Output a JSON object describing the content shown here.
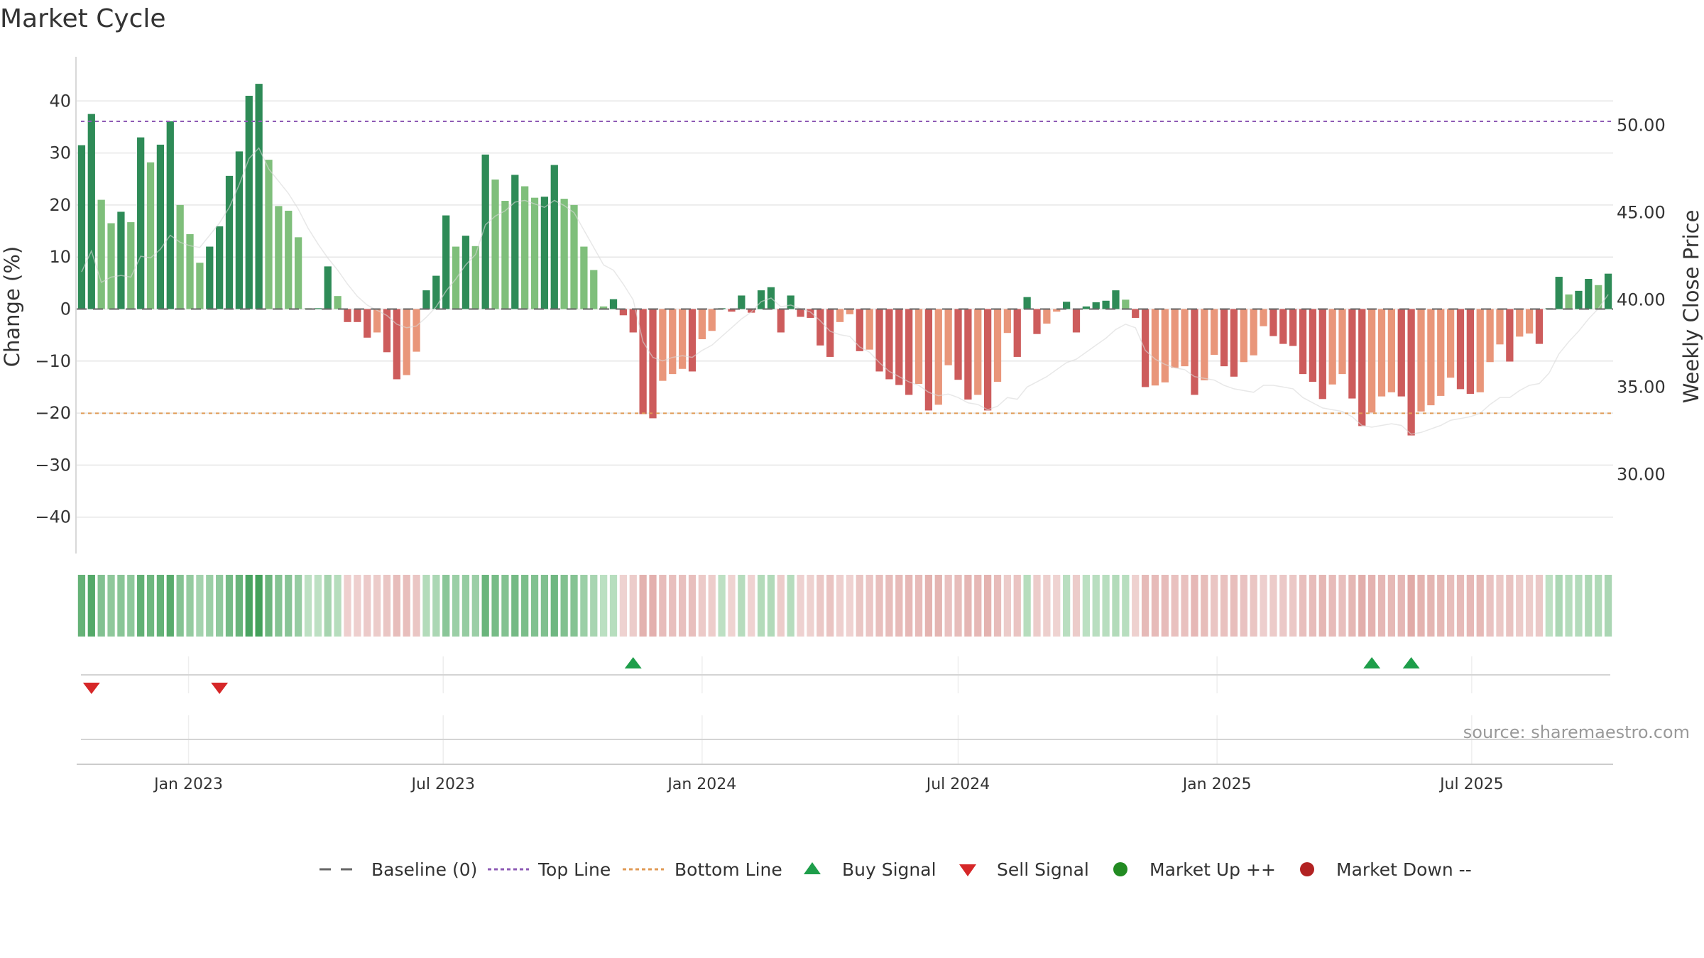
{
  "chart_data": {
    "type": "bar",
    "title": "Market Cycle",
    "ylabel_left": "Change (%)",
    "ylabel_right": "Weekly Close Price",
    "ylim_left": [
      -47,
      48.5
    ],
    "ylim_right": [
      25.46,
      53.93
    ],
    "yticks_left": [
      "40",
      "30",
      "20",
      "10",
      "0",
      "−10",
      "−20",
      "−30",
      "−40"
    ],
    "yticks_left_values": [
      40,
      30,
      20,
      10,
      0,
      -10,
      -20,
      -30,
      -40
    ],
    "yticks_right": [
      "50.00",
      "45.00",
      "40.00",
      "35.00",
      "30.00"
    ],
    "yticks_right_values": [
      50,
      45,
      40,
      35,
      30
    ],
    "x_start": "2022-10-17",
    "x_step_days": 7,
    "xticks": [
      {
        "date": "2023-01-01",
        "label": "Jan 2023"
      },
      {
        "date": "2023-07-01",
        "label": "Jul 2023"
      },
      {
        "date": "2024-01-01",
        "label": "Jan 2024"
      },
      {
        "date": "2024-07-01",
        "label": "Jul 2024"
      },
      {
        "date": "2025-01-01",
        "label": "Jan 2025"
      },
      {
        "date": "2025-07-01",
        "label": "Jul 2025"
      }
    ],
    "values": [
      31.5,
      37.5,
      21,
      16.5,
      18.7,
      16.7,
      33,
      28.2,
      31.6,
      36.1,
      20,
      14.4,
      8.9,
      12,
      15.9,
      25.6,
      30.3,
      41,
      43.3,
      28.7,
      19.8,
      18.9,
      13.8,
      0,
      0,
      8.2,
      2.5,
      -2.5,
      -2.5,
      -5.5,
      -4.5,
      -8.3,
      -13.5,
      -12.7,
      -8.2,
      3.6,
      6.4,
      18,
      12,
      14.1,
      12.1,
      29.7,
      24.9,
      20.8,
      25.8,
      23.6,
      21.4,
      21.6,
      27.7,
      21.2,
      20,
      12,
      7.5,
      0.5,
      1.9,
      -1.2,
      -4.5,
      -20.2,
      -21,
      -13.8,
      -12.5,
      -11.5,
      -12,
      -5.8,
      -4.2,
      0,
      -0.5,
      2.6,
      -0.7,
      3.6,
      4.2,
      -4.5,
      2.6,
      -1.5,
      -1.7,
      -7,
      -9.2,
      -2.5,
      -1,
      -8.1,
      -7.8,
      -12,
      -13.5,
      -14.6,
      -16.5,
      -14.4,
      -19.5,
      -18.4,
      -10.8,
      -13.6,
      -17.4,
      -16.5,
      -19.5,
      -14,
      -4.6,
      -9.2,
      2.3,
      -4.8,
      -2.8,
      -0.5,
      1.4,
      -4.5,
      0.5,
      1.3,
      1.6,
      3.6,
      1.8,
      -1.7,
      -15,
      -14.7,
      -14.1,
      -11.3,
      -11,
      -16.5,
      -13.7,
      -8.8,
      -11,
      -13,
      -10.2,
      -8.9,
      -3.3,
      -5.2,
      -6.7,
      -7.1,
      -12.5,
      -14,
      -17.3,
      -14.5,
      -12.5,
      -17.2,
      -22.5,
      -19.9,
      -16.8,
      -16,
      -16.8,
      -24.3,
      -19.7,
      -18.5,
      -16.7,
      -13.2,
      -15.4,
      -16.3,
      -16,
      -10.2,
      -6.8,
      -10.1,
      -5.3,
      -4.7,
      -6.7,
      0,
      6.2,
      2.8,
      3.5,
      5.8,
      4.6,
      6.8
    ],
    "close": [
      41.6,
      42.8,
      41,
      41.3,
      41.4,
      41.3,
      42.5,
      42.4,
      42.9,
      43.7,
      43.3,
      43.1,
      43,
      43.7,
      44.4,
      45.3,
      46.6,
      48.1,
      48.7,
      47.5,
      46.8,
      46.1,
      45.2,
      44.1,
      43.2,
      42.4,
      41.7,
      40.9,
      40.2,
      39.7,
      39.4,
      39.1,
      38.6,
      38.4,
      38.5,
      39,
      39.6,
      40.5,
      41.2,
      42,
      42.6,
      44.3,
      44.8,
      45.1,
      45.6,
      45.7,
      45.5,
      45.3,
      45.7,
      45.4,
      45,
      44,
      43,
      42,
      41.7,
      40.9,
      40,
      37.6,
      36.7,
      36.5,
      36.7,
      36.8,
      36.7,
      37.1,
      37.4,
      37.9,
      38.4,
      38.9,
      39.3,
      39.9,
      40.1,
      39.6,
      39.7,
      39.5,
      39.3,
      38.8,
      38.2,
      38,
      37.9,
      37.3,
      37,
      36.4,
      35.9,
      35.6,
      35.3,
      35.1,
      34.7,
      34.5,
      34.6,
      34.4,
      34.1,
      34,
      33.7,
      33.9,
      34.4,
      34.3,
      35,
      35.3,
      35.6,
      36,
      36.4,
      36.6,
      37,
      37.4,
      37.8,
      38.3,
      38.6,
      38.4,
      37.1,
      36.6,
      36.3,
      36.1,
      36,
      35.6,
      35.5,
      35.4,
      35.1,
      34.9,
      34.8,
      34.7,
      35.1,
      35.1,
      35,
      34.9,
      34.4,
      34.1,
      33.8,
      33.7,
      33.6,
      33.3,
      32.8,
      32.7,
      32.8,
      32.9,
      32.8,
      32.3,
      32.4,
      32.6,
      32.8,
      33.1,
      33.2,
      33.3,
      33.5,
      34,
      34.4,
      34.4,
      34.8,
      35.1,
      35.2,
      35.8,
      36.9,
      37.6,
      38.2,
      38.9,
      39.5,
      40.3
    ],
    "reference_lines": [
      {
        "name": "Baseline (0)",
        "value": 0,
        "axis": "left",
        "color": "#666666",
        "style": "dashed"
      },
      {
        "name": "Top Line",
        "value": 50.23,
        "axis": "right",
        "color": "#8e5bb5",
        "style": "dotted"
      },
      {
        "name": "Bottom Line",
        "value": 33.5,
        "axis": "right",
        "color": "#e09a55",
        "style": "dotted"
      }
    ],
    "buy_signals": [
      "2023-11-13",
      "2025-04-21",
      "2025-05-19"
    ],
    "sell_signals": [
      "2022-10-24",
      "2023-01-23"
    ],
    "colors": {
      "up_strong": "#2e8b57",
      "up_weak": "#7fbf7b",
      "down_strong": "#cd5c5c",
      "down_weak": "#e9967a",
      "buy": "#1e9e4a",
      "sell": "#d62728",
      "market_up": "#228b22",
      "market_down": "#b22222"
    },
    "legend": {
      "placement": "bottom-center",
      "items": [
        {
          "label": "Baseline (0)",
          "kind": "dash",
          "color": "#666666"
        },
        {
          "label": "Top Line",
          "kind": "dotted",
          "color": "#8e5bb5"
        },
        {
          "label": "Bottom Line",
          "kind": "dotted",
          "color": "#e09a55"
        },
        {
          "label": "Buy Signal",
          "kind": "triangle-up",
          "color": "#1e9e4a"
        },
        {
          "label": "Sell Signal",
          "kind": "triangle-down",
          "color": "#d62728"
        },
        {
          "label": "Market Up ++",
          "kind": "circle",
          "color": "#228b22"
        },
        {
          "label": "Market Down --",
          "kind": "circle",
          "color": "#b22222"
        }
      ]
    },
    "source": "source: sharemaestro.com",
    "grid": true
  }
}
